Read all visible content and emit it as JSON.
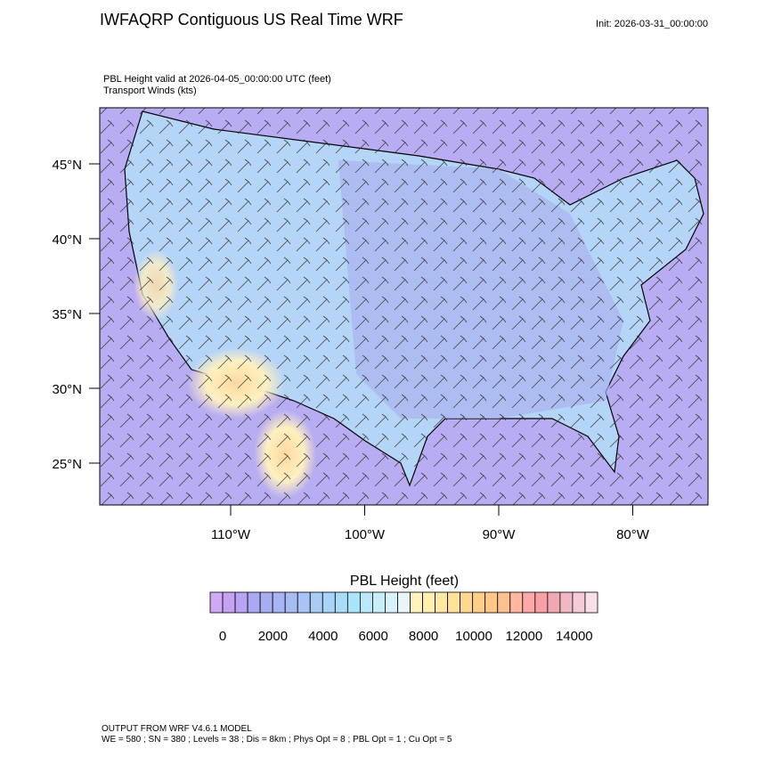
{
  "header": {
    "title": "IWFAQRP Contiguous US Real Time WRF",
    "init": "Init: 2026-03-31_00:00:00"
  },
  "map": {
    "field_label": "PBL Height valid at 2026-04-05_00:00:00 UTC   (feet)",
    "wind_label": "Transport Winds   (kts)",
    "lat_ticks": [
      {
        "value": 45,
        "label": "45°N"
      },
      {
        "value": 40,
        "label": "40°N"
      },
      {
        "value": 35,
        "label": "35°N"
      },
      {
        "value": 30,
        "label": "30°N"
      },
      {
        "value": 25,
        "label": "25°N"
      }
    ],
    "lon_ticks": [
      {
        "value": -110,
        "label": "110°W"
      },
      {
        "value": -100,
        "label": "100°W"
      },
      {
        "value": -90,
        "label": "90°W"
      },
      {
        "value": -80,
        "label": "80°W"
      }
    ]
  },
  "colorbar": {
    "title": "PBL Height  (feet)",
    "ticks": [
      0,
      2000,
      4000,
      6000,
      8000,
      10000,
      12000,
      14000
    ],
    "colors": [
      "#d0a8f4",
      "#c4a4f2",
      "#b8a4f2",
      "#aca8f2",
      "#a8acf2",
      "#a8b4f4",
      "#a8bcf4",
      "#a8c4f6",
      "#a8ccf6",
      "#a8d4f8",
      "#a8dcf8",
      "#a8e4fa",
      "#b8e8fa",
      "#c8eefa",
      "#d8f2fa",
      "#e8f6fa",
      "#fff4c0",
      "#fff0b0",
      "#ffe8a0",
      "#ffe098",
      "#ffd890",
      "#ffd088",
      "#ffc888",
      "#ffc090",
      "#ffb8a0",
      "#ffa8a8",
      "#f8a0a8",
      "#f0a8b4",
      "#f0b8c4",
      "#f4ccd8",
      "#f8e0e8"
    ]
  },
  "footer": {
    "line1": "OUTPUT FROM WRF V4.6.1 MODEL",
    "line2": "WE = 580 ; SN = 380 ; Levels = 38 ; Dis = 8km ; Phys Opt = 8 ; PBL Opt = 1 ; Cu Opt = 5"
  }
}
